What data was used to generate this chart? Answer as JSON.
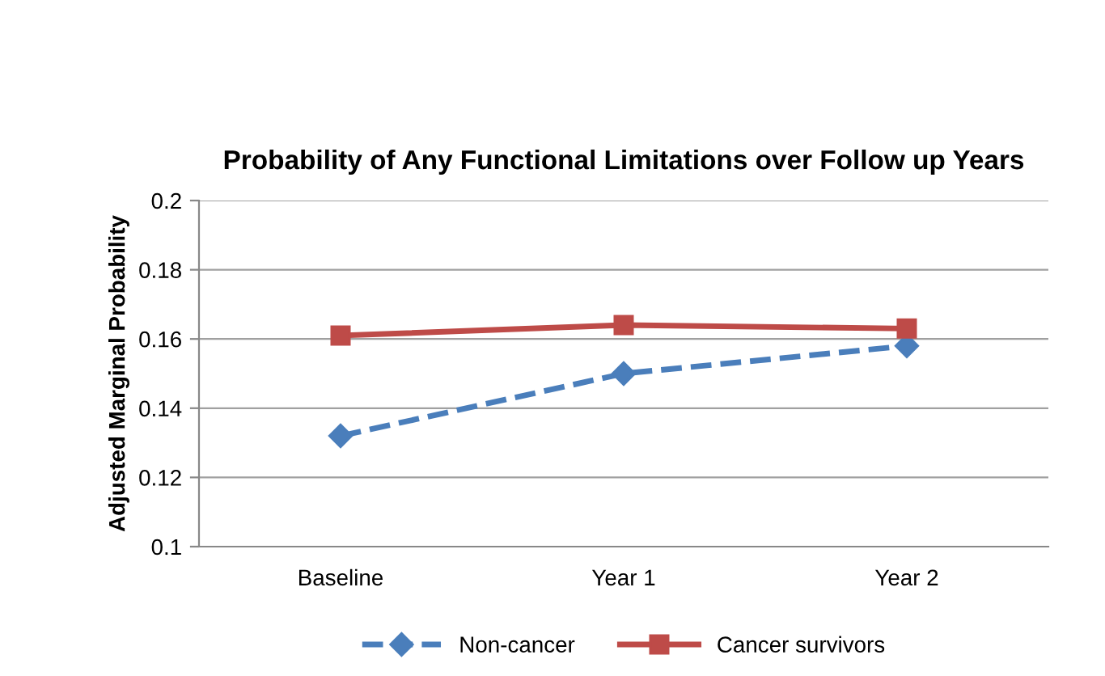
{
  "chart_data": {
    "type": "line",
    "title": "Probability of Any Functional Limitations over Follow up Years",
    "ylabel": "Adjusted Marginal Probability",
    "categories": [
      "Baseline",
      "Year 1",
      "Year 2"
    ],
    "series": [
      {
        "name": "Non-cancer",
        "color": "#4a7ebb",
        "values": [
          0.132,
          0.15,
          0.158
        ],
        "marker": "diamond",
        "line_style": "dashed"
      },
      {
        "name": "Cancer survivors",
        "color": "#be4b48",
        "values": [
          0.161,
          0.164,
          0.163
        ],
        "marker": "square",
        "line_style": "solid"
      }
    ],
    "ylim": [
      0.1,
      0.2
    ],
    "yticks": [
      {
        "value": 0.1,
        "label": "0.1"
      },
      {
        "value": 0.12,
        "label": "0.12"
      },
      {
        "value": 0.14,
        "label": "0.14"
      },
      {
        "value": 0.16,
        "label": "0.16"
      },
      {
        "value": 0.18,
        "label": "0.18"
      },
      {
        "value": 0.2,
        "label": "0.2"
      }
    ],
    "grid": "y",
    "legend": "bottom"
  }
}
